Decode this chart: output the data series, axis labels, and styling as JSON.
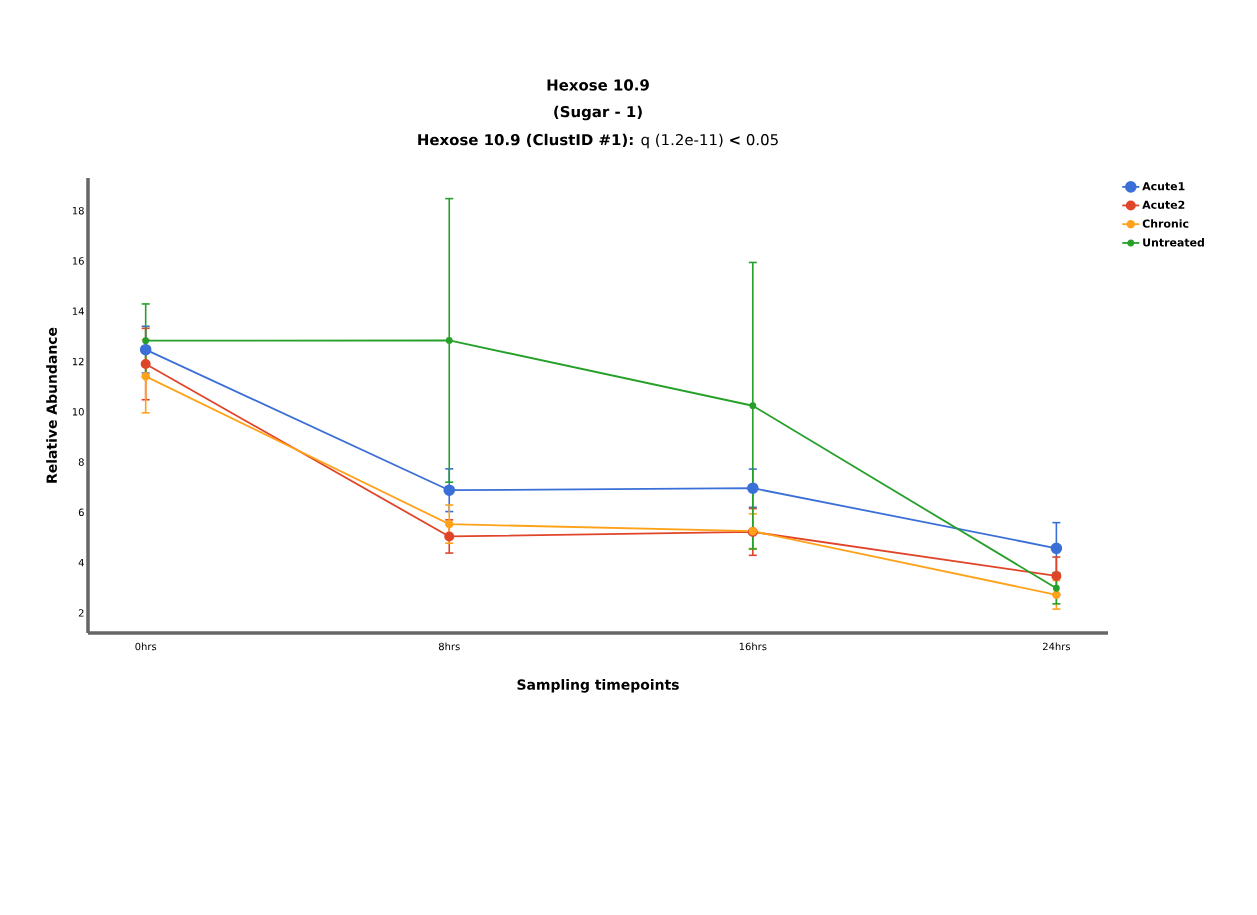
{
  "chart_data": {
    "type": "line",
    "title": "Hexose 10.9",
    "subtitle": "(Sugar - 1)",
    "annotations": [
      "**Hexose 10.9 (ClustID #1):** q (1.2e-11) **<** 0.05"
    ],
    "xlabel": "Sampling timepoints",
    "ylabel": "Relative Abundance",
    "categories": [
      "0hrs",
      "8hrs",
      "16hrs",
      "24hrs"
    ],
    "ylim": [
      1.2,
      19.3
    ],
    "yticks": [
      2,
      4,
      6,
      8,
      10,
      12,
      14,
      16,
      18
    ],
    "legend": "top right",
    "marker": "circle",
    "line_style": "solid",
    "grid": false,
    "series": [
      {
        "name": "Acute1",
        "color": "#3b6fd8",
        "values": [
          12.47,
          6.88,
          6.96,
          4.57
        ],
        "errors": [
          0.93,
          0.85,
          0.76,
          1.02
        ]
      },
      {
        "name": "Acute2",
        "color": "#e0452a",
        "values": [
          11.9,
          5.04,
          5.22,
          3.47
        ],
        "errors": [
          1.42,
          0.66,
          0.93,
          0.75
        ]
      },
      {
        "name": "Chronic",
        "color": "#ffa21a",
        "values": [
          11.41,
          5.53,
          5.25,
          2.72
        ],
        "errors": [
          1.45,
          0.76,
          0.69,
          0.57
        ]
      },
      {
        "name": "Untreated",
        "color": "#26a02a",
        "values": [
          12.83,
          12.84,
          10.24,
          2.98
        ],
        "errors": [
          1.46,
          5.64,
          5.7,
          0.62
        ]
      }
    ]
  }
}
